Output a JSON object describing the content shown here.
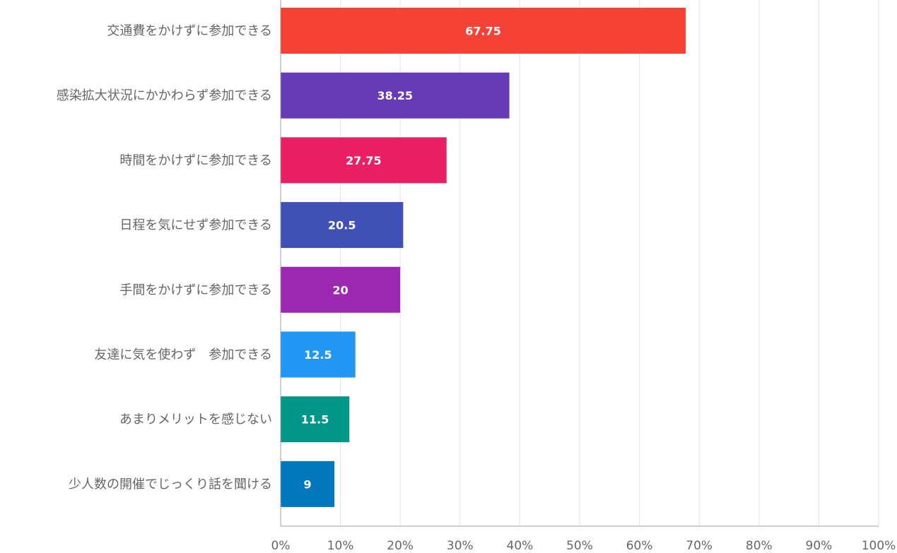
{
  "chart_data": {
    "type": "bar",
    "orientation": "horizontal",
    "categories": [
      "交通費をかけずに参加できる",
      "感染拡大状況にかかわらず参加できる",
      "時間をかけずに参加できる",
      "日程を気にせず参加できる",
      "手間をかけずに参加できる",
      "友達に気を使わず　参加できる",
      "あまりメリットを感じない",
      "少人数の開催でじっくり話を聞ける"
    ],
    "values": [
      67.75,
      38.25,
      27.75,
      20.5,
      20,
      12.5,
      11.5,
      9
    ],
    "data_labels": [
      "67.75",
      "38.25",
      "27.75",
      "20.5",
      "20",
      "12.5",
      "11.5",
      "9"
    ],
    "bar_colors": [
      "#f44336",
      "#673ab7",
      "#e91e63",
      "#3f51b5",
      "#9c27b0",
      "#2196f3",
      "#009688",
      "#0277bd"
    ],
    "title": "",
    "xlabel": "",
    "ylabel": "",
    "xlim": [
      0,
      100
    ],
    "x_ticks": [
      "0%",
      "10%",
      "20%",
      "30%",
      "40%",
      "50%",
      "60%",
      "70%",
      "80%",
      "90%",
      "100%"
    ],
    "grid": true,
    "legend": "none",
    "colors": {
      "grid": "#e3e3e3",
      "axis": "#9e9e9e",
      "label_text": "#666666",
      "data_label_text": "#ffffff"
    }
  }
}
